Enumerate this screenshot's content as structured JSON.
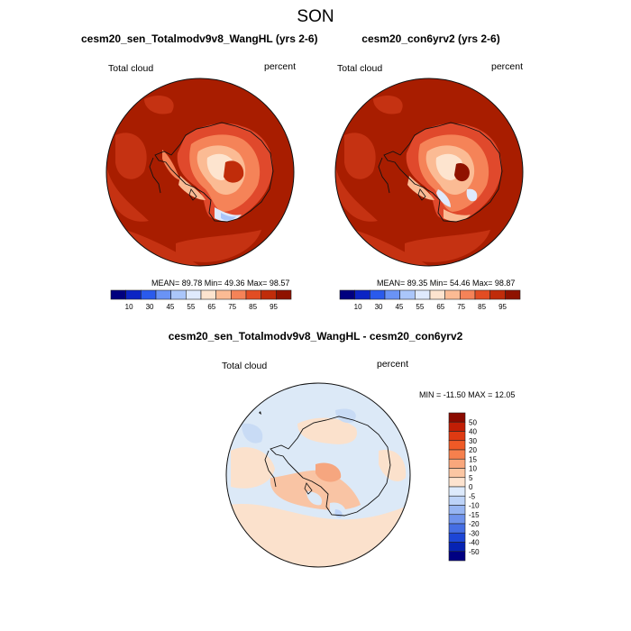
{
  "figure": {
    "title": "SON"
  },
  "panels": [
    {
      "title": "cesm20_sen_Totalmodv9v8_WangHL (yrs 2-6)",
      "left_label": "Total cloud",
      "right_label": "percent",
      "stats": "MEAN=  89.78  Min=  49.36  Max=  98.57"
    },
    {
      "title": "cesm20_con6yrv2 (yrs 2-6)",
      "left_label": "Total cloud",
      "right_label": "percent",
      "stats": "MEAN=  89.35  Min=  54.46  Max=  98.87"
    },
    {
      "title": "cesm20_sen_Totalmodv9v8_WangHL - cesm20_con6yrv2",
      "left_label": "Total cloud",
      "right_label": "percent",
      "stats": "MIN = -11.50 MAX =  12.05"
    }
  ],
  "colors": {
    "ocean_dark": "#a81d00",
    "ocean_mid": "#c53212",
    "diff_bg": "#dce9f7",
    "diff_warm": "#fbe1cc",
    "coast": "#111111"
  },
  "chart_data": [
    {
      "type": "heatmap",
      "title": "cesm20_sen_Totalmodv9v8_WangHL (yrs 2-6)",
      "variable": "Total cloud",
      "units": "percent",
      "projection": "south polar stereographic",
      "stats": {
        "mean": 89.78,
        "min": 49.36,
        "max": 98.57
      },
      "colorbar": {
        "levels": [
          10,
          30,
          45,
          55,
          65,
          75,
          85,
          95
        ],
        "tick_labels": [
          "10",
          "30",
          "45",
          "55",
          "65",
          "75",
          "85",
          "95"
        ],
        "colors": [
          "#00007f",
          "#0b24c4",
          "#2a5aec",
          "#6a93f5",
          "#aac6fa",
          "#dfeafd",
          "#fde4cf",
          "#fbbb94",
          "#f58358",
          "#e24d23",
          "#c02c0a",
          "#8f1200"
        ]
      }
    },
    {
      "type": "heatmap",
      "title": "cesm20_con6yrv2 (yrs 2-6)",
      "variable": "Total cloud",
      "units": "percent",
      "projection": "south polar stereographic",
      "stats": {
        "mean": 89.35,
        "min": 54.46,
        "max": 98.87
      },
      "colorbar": {
        "levels": [
          10,
          30,
          45,
          55,
          65,
          75,
          85,
          95
        ],
        "tick_labels": [
          "10",
          "30",
          "45",
          "55",
          "65",
          "75",
          "85",
          "95"
        ],
        "colors": [
          "#00007f",
          "#0b24c4",
          "#2a5aec",
          "#6a93f5",
          "#aac6fa",
          "#dfeafd",
          "#fde4cf",
          "#fbbb94",
          "#f58358",
          "#e24d23",
          "#c02c0a",
          "#8f1200"
        ]
      }
    },
    {
      "type": "heatmap",
      "title": "cesm20_sen_Totalmodv9v8_WangHL - cesm20_con6yrv2",
      "variable": "Total cloud",
      "units": "percent",
      "projection": "south polar stereographic",
      "stats": {
        "min": -11.5,
        "max": 12.05
      },
      "colorbar": {
        "orientation": "vertical",
        "tick_labels": [
          "50",
          "40",
          "30",
          "20",
          "15",
          "10",
          "5",
          "0",
          "-5",
          "-10",
          "-15",
          "-20",
          "-30",
          "-40",
          "-50"
        ],
        "colors": [
          "#8b0a00",
          "#c11e05",
          "#de3a12",
          "#ef5a26",
          "#f6804d",
          "#f9a77c",
          "#fbc6a3",
          "#fde3cf",
          "#ddeafc",
          "#bdd3f8",
          "#97b5f2",
          "#6f93ec",
          "#456ee4",
          "#1d46d6",
          "#0623b3",
          "#000082"
        ]
      }
    }
  ]
}
